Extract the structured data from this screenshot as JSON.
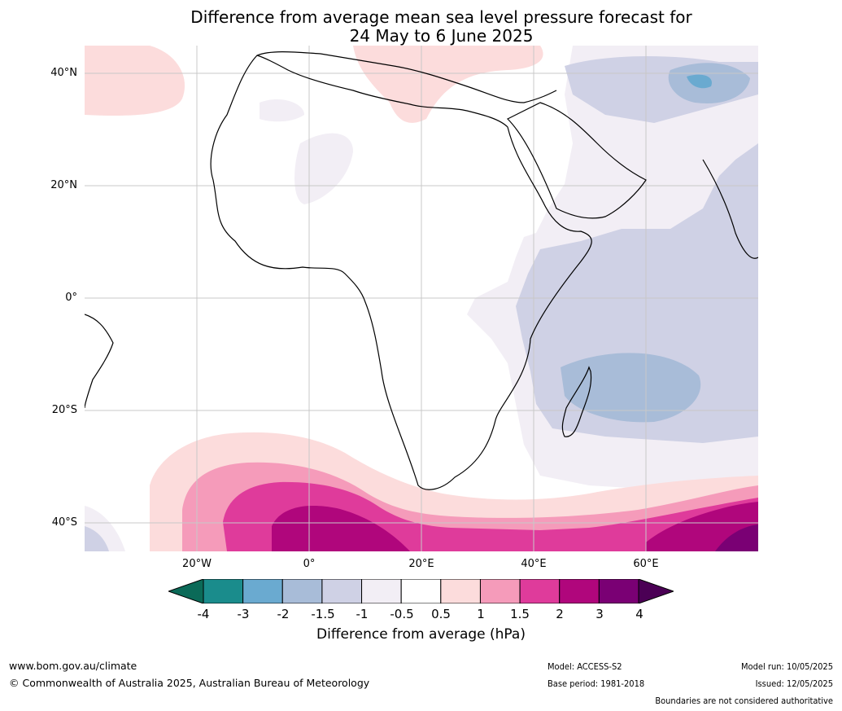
{
  "title_line1": "Difference from average mean sea level pressure forecast for",
  "title_line2": "24 May to 6 June 2025",
  "lat_labels": [
    "40°N",
    "20°N",
    "0°",
    "20°S",
    "40°S"
  ],
  "lon_labels": [
    "20°W",
    "0°",
    "20°E",
    "40°E",
    "60°E"
  ],
  "colorbar": {
    "ticks": [
      "-4",
      "-3",
      "-2",
      "-1.5",
      "-1",
      "-0.5",
      "0.5",
      "1",
      "1.5",
      "2",
      "3",
      "4"
    ],
    "colors": [
      "#1a8c8c",
      "#6aaad0",
      "#a8bcd8",
      "#cfd1e5",
      "#f2eef5",
      "#ffffff",
      "#fcdcdc",
      "#f59bba",
      "#df3b9b",
      "#b0067c",
      "#7a0074"
    ],
    "under_color": "#0b6a58",
    "over_color": "#4b0055",
    "label": "Difference from average (hPa)"
  },
  "footer": {
    "url": "www.bom.gov.au/climate",
    "copyright": "© Commonwealth of Australia 2025, Australian Bureau of Meteorology",
    "model": "Model: ACCESS-S2",
    "base_period": "Base period: 1981-2018",
    "model_run": "Model run: 10/05/2025",
    "issued": "Issued: 12/05/2025",
    "disclaimer": "Boundaries are not considered authoritative"
  }
}
